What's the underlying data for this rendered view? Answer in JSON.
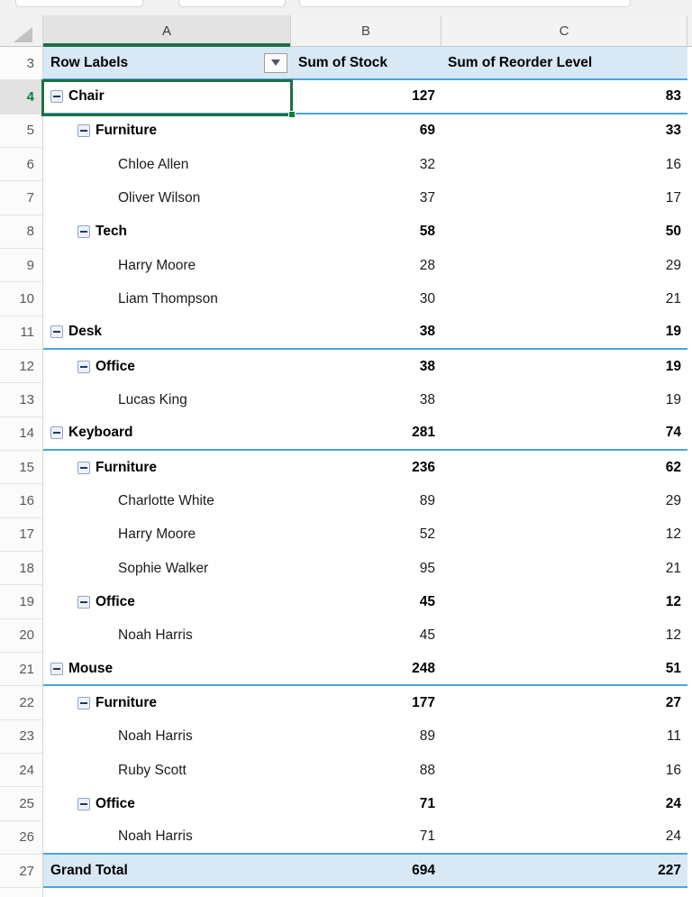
{
  "colors": {
    "selection_green": "#1E7044",
    "fill_handle_green": "#107C41",
    "pivot_border_blue": "#4AA5DC",
    "pivot_fill_lightblue": "#D8E8F5"
  },
  "icons": {
    "select_all": "corner-triangle",
    "filter": "dropdown-arrow",
    "collapse": "minus-box"
  },
  "columns": [
    "A",
    "B",
    "C"
  ],
  "selected_column": "A",
  "sheet": {
    "header_row": {
      "number": "3",
      "row_labels": "Row Labels",
      "sum_of_stock": "Sum of Stock",
      "sum_of_reorder": "Sum of Reorder Level"
    },
    "rows": [
      {
        "number": "4",
        "label": "Chair",
        "level": 0,
        "bold": true,
        "collapse": true,
        "stock": "127",
        "reorder": "83",
        "border_bottom": true,
        "selected": true
      },
      {
        "number": "5",
        "label": "Furniture",
        "level": 1,
        "bold": true,
        "collapse": true,
        "stock": "69",
        "reorder": "33"
      },
      {
        "number": "6",
        "label": "Chloe Allen",
        "level": 2,
        "bold": false,
        "collapse": false,
        "stock": "32",
        "reorder": "16"
      },
      {
        "number": "7",
        "label": "Oliver Wilson",
        "level": 2,
        "bold": false,
        "collapse": false,
        "stock": "37",
        "reorder": "17"
      },
      {
        "number": "8",
        "label": "Tech",
        "level": 1,
        "bold": true,
        "collapse": true,
        "stock": "58",
        "reorder": "50"
      },
      {
        "number": "9",
        "label": "Harry Moore",
        "level": 2,
        "bold": false,
        "collapse": false,
        "stock": "28",
        "reorder": "29"
      },
      {
        "number": "10",
        "label": "Liam Thompson",
        "level": 2,
        "bold": false,
        "collapse": false,
        "stock": "30",
        "reorder": "21"
      },
      {
        "number": "11",
        "label": "Desk",
        "level": 0,
        "bold": true,
        "collapse": true,
        "stock": "38",
        "reorder": "19",
        "border_bottom": true
      },
      {
        "number": "12",
        "label": "Office",
        "level": 1,
        "bold": true,
        "collapse": true,
        "stock": "38",
        "reorder": "19"
      },
      {
        "number": "13",
        "label": "Lucas King",
        "level": 2,
        "bold": false,
        "collapse": false,
        "stock": "38",
        "reorder": "19"
      },
      {
        "number": "14",
        "label": "Keyboard",
        "level": 0,
        "bold": true,
        "collapse": true,
        "stock": "281",
        "reorder": "74",
        "border_bottom": true
      },
      {
        "number": "15",
        "label": "Furniture",
        "level": 1,
        "bold": true,
        "collapse": true,
        "stock": "236",
        "reorder": "62"
      },
      {
        "number": "16",
        "label": "Charlotte White",
        "level": 2,
        "bold": false,
        "collapse": false,
        "stock": "89",
        "reorder": "29"
      },
      {
        "number": "17",
        "label": "Harry Moore",
        "level": 2,
        "bold": false,
        "collapse": false,
        "stock": "52",
        "reorder": "12"
      },
      {
        "number": "18",
        "label": "Sophie Walker",
        "level": 2,
        "bold": false,
        "collapse": false,
        "stock": "95",
        "reorder": "21"
      },
      {
        "number": "19",
        "label": "Office",
        "level": 1,
        "bold": true,
        "collapse": true,
        "stock": "45",
        "reorder": "12"
      },
      {
        "number": "20",
        "label": "Noah Harris",
        "level": 2,
        "bold": false,
        "collapse": false,
        "stock": "45",
        "reorder": "12"
      },
      {
        "number": "21",
        "label": "Mouse",
        "level": 0,
        "bold": true,
        "collapse": true,
        "stock": "248",
        "reorder": "51",
        "border_bottom": true
      },
      {
        "number": "22",
        "label": "Furniture",
        "level": 1,
        "bold": true,
        "collapse": true,
        "stock": "177",
        "reorder": "27"
      },
      {
        "number": "23",
        "label": "Noah Harris",
        "level": 2,
        "bold": false,
        "collapse": false,
        "stock": "89",
        "reorder": "11"
      },
      {
        "number": "24",
        "label": "Ruby Scott",
        "level": 2,
        "bold": false,
        "collapse": false,
        "stock": "88",
        "reorder": "16"
      },
      {
        "number": "25",
        "label": "Office",
        "level": 1,
        "bold": true,
        "collapse": true,
        "stock": "71",
        "reorder": "24"
      },
      {
        "number": "26",
        "label": "Noah Harris",
        "level": 2,
        "bold": false,
        "collapse": false,
        "stock": "71",
        "reorder": "24",
        "border_bottom": true
      },
      {
        "number": "27",
        "label": "Grand Total",
        "level": 0,
        "bold": true,
        "collapse": false,
        "stock": "694",
        "reorder": "227",
        "border_bottom": true,
        "grand": true
      }
    ]
  }
}
